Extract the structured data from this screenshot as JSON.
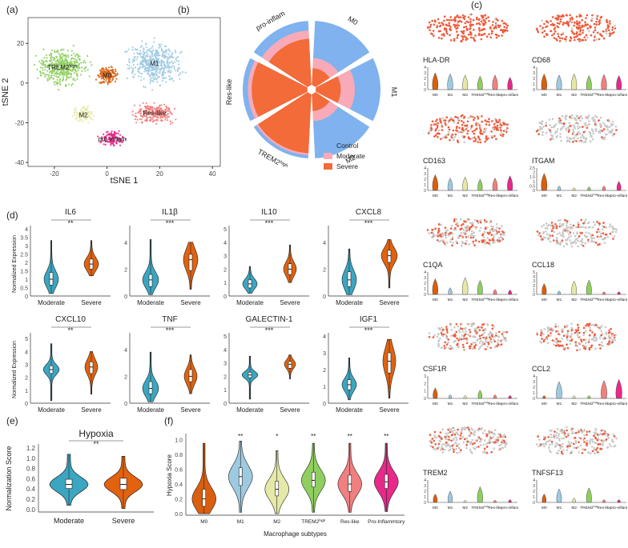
{
  "panel_labels": [
    "(a)",
    "(b)",
    "(c)",
    "(d)",
    "(e)",
    "(f)"
  ],
  "colors": {
    "M0": "#d95f0e",
    "M1": "#9ecae1",
    "M2": "#e5e8a7",
    "TREM2high": "#8fcf5f",
    "Res-like": "#f08080",
    "pro-inflam": "#e7298a",
    "control": "#7fb2ee",
    "moderate": "#f8aab8",
    "severe": "#f26b38",
    "violin_moderate": "#3ba6c1",
    "violin_severe": "#e2620e",
    "hot": "#ef5a3a",
    "cold": "#c9c9c9"
  },
  "chart_data": [
    {
      "id": "a",
      "type": "scatter",
      "xlabel": "tSNE  1",
      "ylabel": "tSNE  2",
      "xticks": [
        -20,
        0,
        20,
        40
      ],
      "yticks": [
        -40,
        -20,
        0,
        20
      ],
      "xlim": [
        -30,
        43
      ],
      "ylim": [
        -42,
        33
      ],
      "clusters": [
        {
          "name": "TREM2high",
          "label_base": "TREM2",
          "label_sup": "high",
          "cx": -17,
          "cy": 8,
          "rx": 11,
          "ry": 11,
          "n": 420,
          "color_key": "TREM2high"
        },
        {
          "name": "M0",
          "label_base": "M0",
          "cx": 0,
          "cy": 4,
          "rx": 5,
          "ry": 6,
          "n": 150,
          "color_key": "M0"
        },
        {
          "name": "M1",
          "label_base": "M1",
          "cx": 18,
          "cy": 10,
          "rx": 13,
          "ry": 14,
          "n": 480,
          "color_key": "M1"
        },
        {
          "name": "M2",
          "label_base": "M2",
          "cx": -9,
          "cy": -16,
          "rx": 6,
          "ry": 5,
          "n": 90,
          "color_key": "M2"
        },
        {
          "name": "Res-like",
          "label_base": "Res-like",
          "cx": 18,
          "cy": -15,
          "rx": 10,
          "ry": 6,
          "n": 250,
          "color_key": "Res-like"
        },
        {
          "name": "pro-inflam",
          "label_base": "pro-inflam",
          "cx": 2,
          "cy": -28,
          "rx": 6,
          "ry": 5,
          "n": 130,
          "color_key": "pro-inflam"
        }
      ]
    },
    {
      "id": "b",
      "type": "pie",
      "categories": [
        "M0",
        "M1",
        "M2",
        "TREM2high",
        "Res-like",
        "pro-inflam"
      ],
      "category_labels": [
        "M0",
        "M1",
        "M2",
        "TREM2",
        "Res-like",
        "pro-inflam"
      ],
      "category_sup": [
        "",
        "",
        "",
        "high",
        "",
        ""
      ],
      "series": [
        {
          "name": "Control",
          "values": [
            1.0,
            1.0,
            1.0,
            1.0,
            1.0,
            1.0
          ]
        },
        {
          "name": "Moderate",
          "values": [
            0.42,
            0.6,
            0.42,
            0.95,
            0.92,
            0.85
          ]
        },
        {
          "name": "Severe",
          "values": [
            0.26,
            0.38,
            0.26,
            0.92,
            0.86,
            0.72
          ]
        }
      ],
      "legend": [
        "Control",
        "Moderate",
        "Severe"
      ]
    },
    {
      "id": "c",
      "type": "violin",
      "groups": [
        "M0",
        "M1",
        "M2",
        "TREM2high",
        "Res-like",
        "pro-inflam"
      ],
      "group_labels": [
        "M0",
        "M1",
        "M2",
        "TREM2",
        "Res-like",
        "pro-inflam"
      ],
      "group_sup": [
        "",
        "",
        "",
        "high",
        "",
        ""
      ],
      "genes": [
        {
          "name": "HLA-DR",
          "ymax": 4,
          "yticks": [
            0,
            1,
            2,
            3,
            4
          ],
          "levels": [
            3.0,
            2.8,
            2.6,
            2.4,
            2.6,
            2.2
          ],
          "hot": 0.95
        },
        {
          "name": "CD68",
          "ymax": 4,
          "yticks": [
            0,
            1,
            2,
            3,
            4
          ],
          "levels": [
            2.8,
            2.6,
            2.8,
            2.5,
            2.7,
            2.5
          ],
          "hot": 0.9
        },
        {
          "name": "CD163",
          "ymax": 4,
          "yticks": [
            0,
            1,
            2,
            3,
            4
          ],
          "levels": [
            2.8,
            2.2,
            2.4,
            2.0,
            2.2,
            2.6
          ],
          "hot": 0.75
        },
        {
          "name": "ITGAM",
          "ymax": 2.5,
          "yticks": [
            0,
            0.5,
            1,
            1.5,
            2,
            2.5
          ],
          "levels": [
            1.9,
            0.5,
            0.3,
            0.4,
            0.5,
            1.0
          ],
          "hot": 0.12
        },
        {
          "name": "C1QA",
          "ymax": 4,
          "yticks": [
            0,
            1,
            2,
            3,
            4
          ],
          "levels": [
            2.8,
            1.2,
            3.0,
            2.5,
            0.9,
            0.8
          ],
          "hot": 0.45
        },
        {
          "name": "CCL18",
          "ymax": 5,
          "yticks": [
            0,
            1,
            2,
            3,
            4,
            5
          ],
          "levels": [
            2.4,
            0.8,
            3.0,
            3.2,
            0.6,
            0.6
          ],
          "hot": 0.25
        },
        {
          "name": "CSF1R",
          "ymax": 3,
          "yticks": [
            0,
            1,
            2,
            3
          ],
          "levels": [
            1.4,
            0.5,
            0.4,
            1.1,
            0.5,
            0.4
          ],
          "hot": 0.35
        },
        {
          "name": "CCL2",
          "ymax": 4,
          "yticks": [
            0,
            1,
            2,
            3,
            4
          ],
          "levels": [
            0.5,
            3.0,
            0.5,
            0.5,
            3.2,
            3.4
          ],
          "hot": 0.4
        },
        {
          "name": "TREM2",
          "ymax": 4,
          "yticks": [
            0,
            1,
            2,
            3,
            4
          ],
          "levels": [
            1.5,
            2.0,
            0.4,
            2.8,
            0.4,
            0.5
          ],
          "hot": 0.35
        },
        {
          "name": "TNFSF13",
          "ymax": 4,
          "yticks": [
            0,
            1,
            2,
            3,
            4
          ],
          "levels": [
            1.5,
            2.4,
            0.8,
            2.6,
            0.5,
            0.5
          ],
          "hot": 0.3
        }
      ]
    },
    {
      "id": "d",
      "type": "violin",
      "ylabel": "Normalized Expression",
      "groups": [
        "Moderate",
        "Severe"
      ],
      "genes": [
        {
          "name": "IL6",
          "sig": "**",
          "ymin": 0,
          "ymax": 4,
          "yticks": [
            0,
            0.5,
            1,
            1.5,
            2,
            2.5,
            3,
            3.5,
            4
          ],
          "moderate": {
            "med": 1.0,
            "q1": 0.65,
            "q3": 1.4,
            "lo": 0.15,
            "hi": 3.3,
            "wide": 0.9
          },
          "severe": {
            "med": 1.9,
            "q1": 1.6,
            "q3": 2.2,
            "lo": 1.2,
            "hi": 3.3,
            "wide": 0.9
          }
        },
        {
          "name": "IL1β",
          "sig": "***",
          "ymin": 0,
          "ymax": 5,
          "yticks": [
            0,
            2,
            4
          ],
          "moderate": {
            "med": 1.2,
            "q1": 0.7,
            "q3": 1.6,
            "lo": 0.1,
            "hi": 4.2,
            "wide": 1.0
          },
          "severe": {
            "med": 2.7,
            "q1": 1.9,
            "q3": 3.1,
            "lo": 0.5,
            "hi": 4.0,
            "wide": 0.9
          }
        },
        {
          "name": "IL10",
          "sig": "***",
          "ymin": 0,
          "ymax": 5,
          "yticks": [
            0,
            1,
            2,
            3,
            4,
            5
          ],
          "moderate": {
            "med": 0.9,
            "q1": 0.6,
            "q3": 1.2,
            "lo": 0.2,
            "hi": 2.2,
            "wide": 0.9
          },
          "severe": {
            "med": 2.0,
            "q1": 1.6,
            "q3": 2.4,
            "lo": 1.0,
            "hi": 3.8,
            "wide": 0.8
          }
        },
        {
          "name": "CXCL8",
          "sig": "***",
          "ymin": 0,
          "ymax": 5,
          "yticks": [
            0,
            2,
            4
          ],
          "moderate": {
            "med": 1.2,
            "q1": 0.7,
            "q3": 1.8,
            "lo": 0.1,
            "hi": 3.5,
            "wide": 0.9
          },
          "severe": {
            "med": 3.0,
            "q1": 2.5,
            "q3": 3.4,
            "lo": 0.6,
            "hi": 4.2,
            "wide": 1.0
          }
        },
        {
          "name": "CXCL10",
          "sig": "**",
          "ymin": 0,
          "ymax": 5.2,
          "yticks": [
            0,
            1,
            2,
            3,
            4,
            5
          ],
          "moderate": {
            "med": 2.6,
            "q1": 2.3,
            "q3": 2.9,
            "lo": 0.2,
            "hi": 4.6,
            "wide": 1.0
          },
          "severe": {
            "med": 2.8,
            "q1": 2.3,
            "q3": 3.2,
            "lo": 0.7,
            "hi": 4.0,
            "wide": 0.8
          }
        },
        {
          "name": "TNF",
          "sig": "***",
          "ymin": 0,
          "ymax": 5,
          "yticks": [
            0,
            2,
            4
          ],
          "moderate": {
            "med": 1.1,
            "q1": 0.7,
            "q3": 1.6,
            "lo": 0.1,
            "hi": 3.8,
            "wide": 1.0
          },
          "severe": {
            "med": 2.0,
            "q1": 1.6,
            "q3": 2.5,
            "lo": 0.7,
            "hi": 3.6,
            "wide": 0.8
          }
        },
        {
          "name": "GALECTIN-1",
          "sig": "***",
          "ymin": 0,
          "ymax": 5,
          "yticks": [
            0,
            1,
            2,
            3,
            4,
            5
          ],
          "moderate": {
            "med": 2.1,
            "q1": 1.9,
            "q3": 2.3,
            "lo": 0.3,
            "hi": 3.5,
            "wide": 1.0
          },
          "severe": {
            "med": 2.9,
            "q1": 2.6,
            "q3": 3.1,
            "lo": 1.8,
            "hi": 3.6,
            "wide": 0.7
          }
        },
        {
          "name": "IGF1",
          "sig": "***",
          "ymin": 0,
          "ymax": 4,
          "yticks": [
            0,
            1,
            2,
            3,
            4
          ],
          "moderate": {
            "med": 1.1,
            "q1": 0.8,
            "q3": 1.4,
            "lo": 0.2,
            "hi": 2.7,
            "wide": 0.9
          },
          "severe": {
            "med": 2.5,
            "q1": 1.8,
            "q3": 3.0,
            "lo": 0.3,
            "hi": 3.8,
            "wide": 0.8
          }
        }
      ]
    },
    {
      "id": "e",
      "type": "violin",
      "title": "Hypoxia",
      "sig": "**",
      "ylabel": "Normalization Score",
      "ylim": [
        -0.05,
        1.28
      ],
      "yticks": [
        0.0,
        0.2,
        0.4,
        0.6,
        0.8,
        1.0,
        1.2
      ],
      "ytick_labels": [
        "0.0",
        "0.2",
        "0.4",
        "0.6",
        "0.8",
        "1.0",
        "1.2"
      ],
      "groups": [
        "Moderate",
        "Severe"
      ],
      "stats": [
        {
          "med": 0.49,
          "q1": 0.41,
          "q3": 0.59,
          "lo": 0.08,
          "hi": 1.08
        },
        {
          "med": 0.49,
          "q1": 0.39,
          "q3": 0.61,
          "lo": 0.02,
          "hi": 1.04
        }
      ]
    },
    {
      "id": "f",
      "type": "violin",
      "xlabel": "Macrophage subtypes",
      "ylabel": "Hypoxia Score",
      "ylim": [
        -0.02,
        1.08
      ],
      "yticks": [
        0.0,
        0.2,
        0.4,
        0.6,
        0.8,
        1.0
      ],
      "ytick_labels": [
        "0.0",
        "0.2",
        "0.4",
        "0.6",
        "0.8",
        "1.0"
      ],
      "groups": [
        "M0",
        "M1",
        "M2",
        "TREM2high",
        "Res-like",
        "Pro-Inflammtory"
      ],
      "group_labels": [
        "M0",
        "M1",
        "M2",
        "TREM2",
        "Res-like",
        "Pro-Inflammtory"
      ],
      "group_sup": [
        "",
        "",
        "",
        "high",
        "",
        ""
      ],
      "sig": [
        "",
        "**",
        "*",
        "**",
        "**",
        "**"
      ],
      "stats": [
        {
          "med": 0.2,
          "q1": 0.1,
          "q3": 0.33,
          "lo": 0.0,
          "hi": 0.95
        },
        {
          "med": 0.5,
          "q1": 0.38,
          "q3": 0.62,
          "lo": 0.02,
          "hi": 0.98
        },
        {
          "med": 0.33,
          "q1": 0.24,
          "q3": 0.44,
          "lo": 0.0,
          "hi": 0.85
        },
        {
          "med": 0.45,
          "q1": 0.36,
          "q3": 0.56,
          "lo": 0.02,
          "hi": 0.95
        },
        {
          "med": 0.4,
          "q1": 0.3,
          "q3": 0.52,
          "lo": 0.02,
          "hi": 0.95
        },
        {
          "med": 0.43,
          "q1": 0.34,
          "q3": 0.53,
          "lo": 0.03,
          "hi": 0.95
        }
      ]
    }
  ]
}
